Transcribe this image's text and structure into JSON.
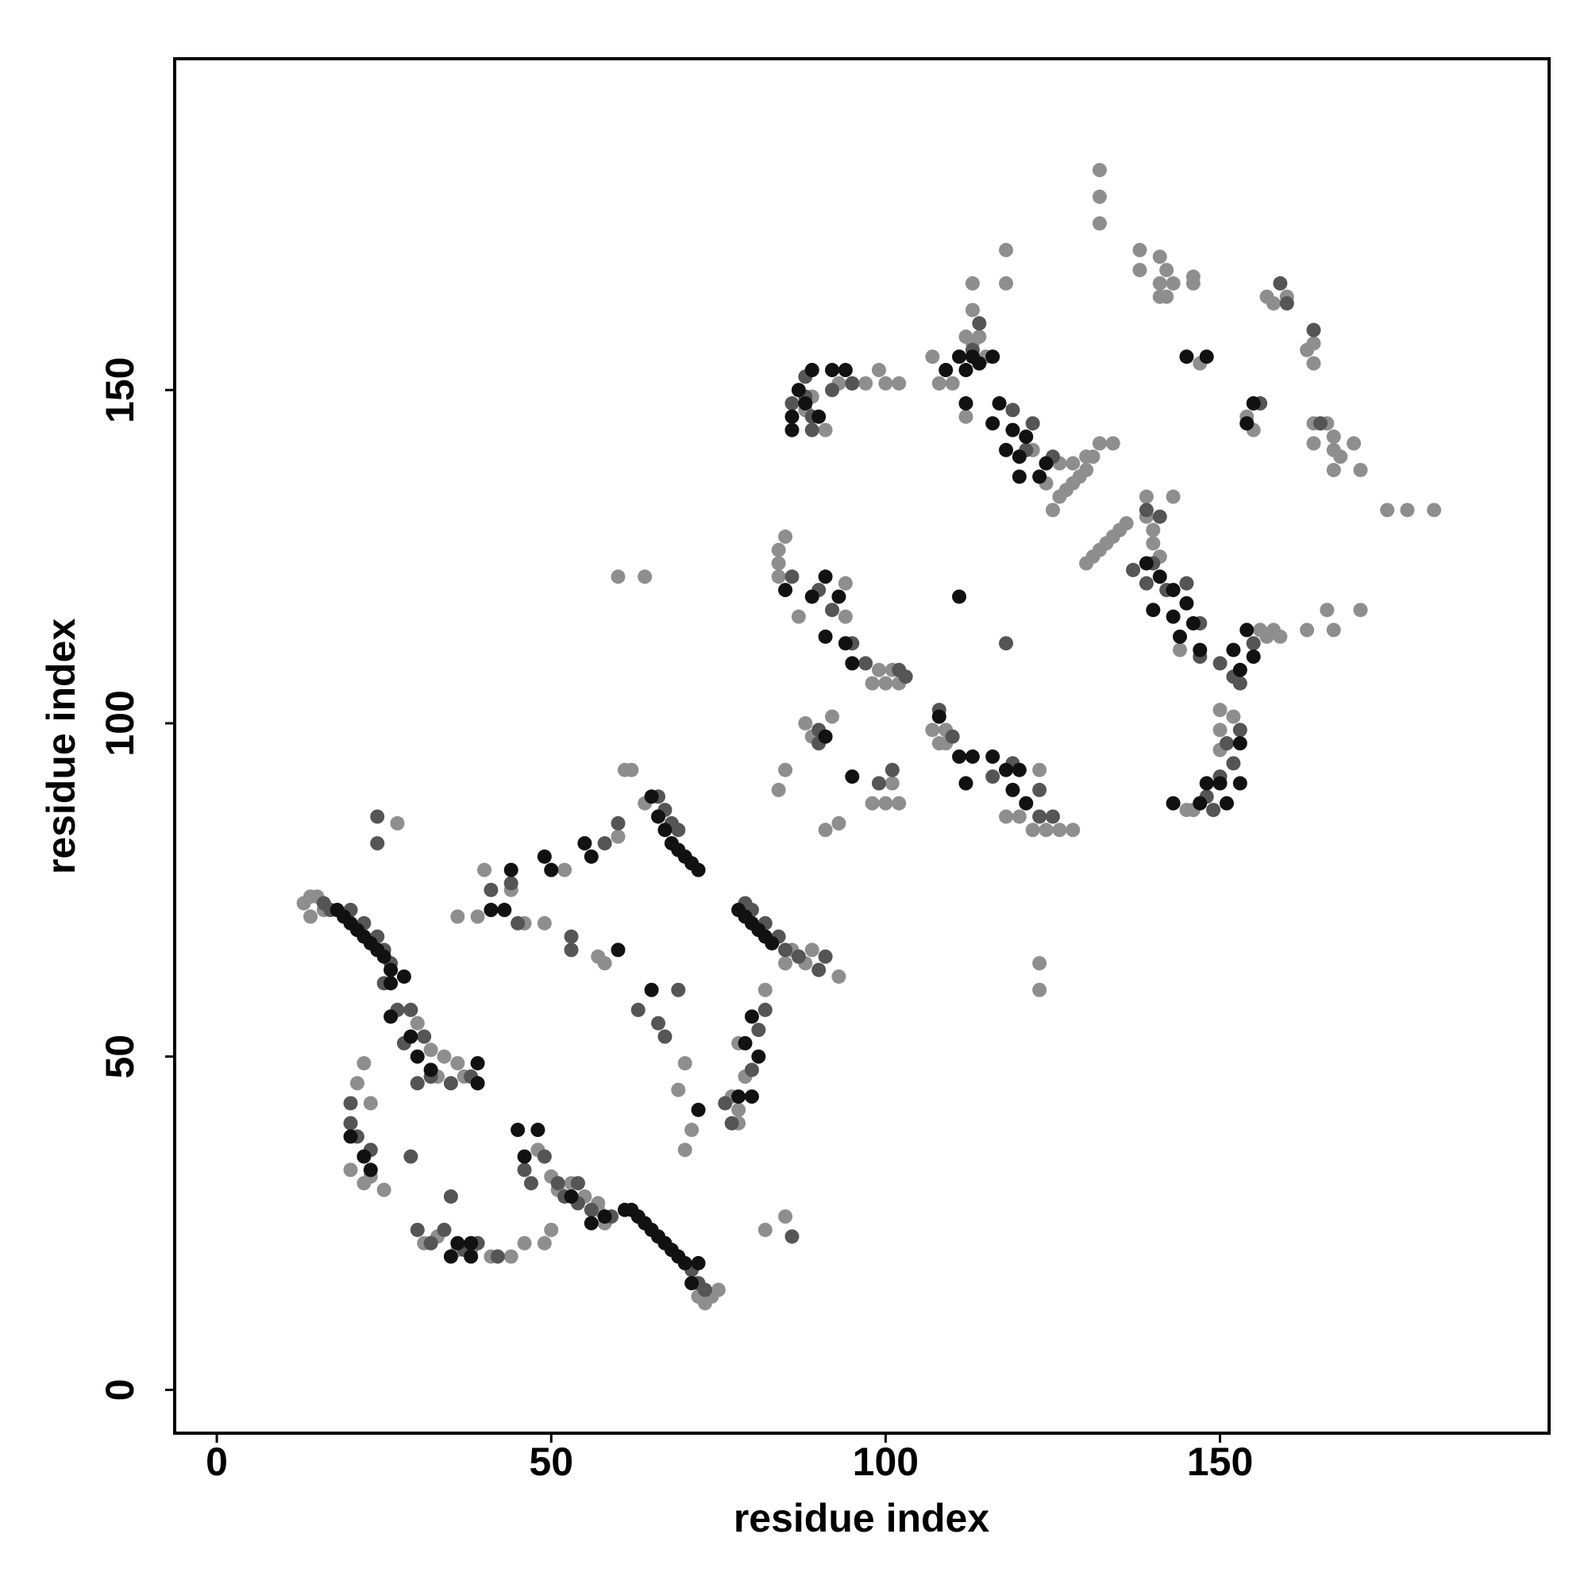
{
  "chart_data": {
    "type": "scatter",
    "x_label": "residue index",
    "y_label": "residue index",
    "xlim": [
      -6.3,
      199.2
    ],
    "ylim": [
      -6.5,
      199.7
    ],
    "xticks": [
      0,
      50,
      100,
      150
    ],
    "yticks": [
      0,
      50,
      100,
      150
    ],
    "series": [
      {
        "color": "#8e8e8e",
        "x": [
          13,
          14,
          15,
          14,
          16,
          22,
          21,
          23,
          20,
          22,
          23,
          25,
          27,
          30,
          32,
          33,
          34,
          36,
          37,
          31,
          33,
          36,
          38,
          41,
          44,
          46,
          49,
          50,
          39,
          36,
          40,
          44,
          46,
          49,
          52,
          48,
          50,
          51,
          53,
          55,
          57,
          58,
          57,
          57,
          58,
          60,
          61,
          62,
          60,
          64,
          64,
          69,
          70,
          70,
          71,
          73,
          74,
          75,
          72,
          77,
          78,
          78,
          78,
          79,
          82,
          85,
          86,
          88,
          89,
          93,
          82,
          85,
          84,
          85,
          84,
          84,
          84,
          85,
          87,
          88,
          89,
          90,
          91,
          93,
          92,
          88,
          89,
          91,
          93,
          95,
          97,
          99,
          100,
          102,
          94,
          94,
          98,
          99,
          100,
          101,
          102,
          98,
          100,
          101,
          102,
          107,
          108,
          110,
          112,
          112,
          113,
          114,
          115,
          113,
          113,
          118,
          118,
          107,
          108,
          109,
          109,
          118,
          120,
          122,
          124,
          126,
          128,
          123,
          123,
          123,
          122,
          124,
          126,
          128,
          130,
          131,
          132,
          134,
          125,
          126,
          127,
          128,
          129,
          130,
          130,
          131,
          132,
          133,
          134,
          135,
          136,
          132,
          132,
          132,
          138,
          138,
          141,
          142,
          141,
          143,
          142,
          141,
          146,
          146,
          139,
          139,
          140,
          140,
          141,
          143,
          144,
          150,
          150,
          150,
          152,
          146,
          145,
          147,
          154,
          155,
          157,
          158,
          160,
          156,
          157,
          158,
          159,
          163,
          164,
          164,
          164,
          166,
          167,
          164,
          167,
          168,
          170,
          171,
          167,
          175,
          178,
          182,
          166,
          171,
          163,
          167
        ],
        "values": [
          73,
          74,
          74,
          71,
          72,
          49,
          46,
          43,
          33,
          31,
          32,
          30,
          85,
          55,
          51,
          47,
          50,
          49,
          47,
          22,
          23,
          21,
          21,
          20,
          20,
          22,
          22,
          24,
          71,
          71,
          78,
          75,
          70,
          70,
          78,
          36,
          32,
          30,
          31,
          29,
          27,
          25,
          28,
          65,
          64,
          83,
          93,
          93,
          122,
          122,
          88,
          45,
          49,
          36,
          39,
          13,
          14,
          15,
          14,
          44,
          42,
          40,
          52,
          47,
          60,
          64,
          66,
          64,
          66,
          62,
          24,
          26,
          90,
          93,
          122,
          124,
          126,
          128,
          116,
          100,
          98,
          98,
          84,
          85,
          101,
          147,
          149,
          144,
          151,
          151,
          151,
          153,
          151,
          151,
          121,
          116,
          106,
          108,
          106,
          108,
          106,
          88,
          88,
          91,
          88,
          155,
          151,
          151,
          146,
          158,
          157,
          158,
          155,
          162,
          166,
          166,
          171,
          99,
          97,
          99,
          97,
          86,
          86,
          84,
          84,
          84,
          84,
          93,
          64,
          60,
          141,
          136,
          139,
          139,
          140,
          140,
          142,
          142,
          132,
          134,
          135,
          136,
          137,
          138,
          124,
          125,
          126,
          127,
          128,
          129,
          130,
          183,
          179,
          175,
          171,
          168,
          170,
          168,
          166,
          166,
          164,
          164,
          167,
          166,
          134,
          131,
          129,
          127,
          125,
          134,
          111,
          102,
          99,
          96,
          101,
          87,
          87,
          154,
          146,
          144,
          164,
          163,
          164,
          114,
          113,
          114,
          113,
          156,
          154,
          157,
          145,
          145,
          143,
          142,
          141,
          140,
          142,
          138,
          138,
          132,
          132,
          132,
          117,
          117,
          114,
          114
        ]
      },
      {
        "color": "#555555",
        "x": [
          16,
          17,
          20,
          22,
          24,
          25,
          26,
          27,
          25,
          29,
          28,
          31,
          32,
          30,
          35,
          38,
          20,
          20,
          21,
          23,
          24,
          24,
          29,
          30,
          32,
          34,
          35,
          37,
          39,
          42,
          41,
          44,
          45,
          46,
          47,
          49,
          51,
          52,
          54,
          54,
          56,
          53,
          53,
          58,
          59,
          60,
          63,
          66,
          67,
          69,
          66,
          67,
          68,
          69,
          72,
          73,
          71,
          76,
          77,
          80,
          81,
          82,
          79,
          80,
          82,
          84,
          85,
          87,
          90,
          91,
          86,
          86,
          88,
          89,
          89,
          92,
          95,
          88,
          86,
          90,
          92,
          95,
          97,
          99,
          101,
          102,
          103,
          90,
          90,
          108,
          110,
          113,
          114,
          119,
          121,
          122,
          125,
          116,
          119,
          123,
          123,
          125,
          137,
          139,
          140,
          141,
          139,
          142,
          145,
          147,
          149,
          148,
          150,
          152,
          151,
          153,
          147,
          150,
          152,
          153,
          155,
          156,
          159,
          164,
          160,
          165,
          118
        ],
        "values": [
          73,
          72,
          72,
          70,
          68,
          66,
          64,
          57,
          61,
          57,
          52,
          53,
          47,
          46,
          46,
          47,
          43,
          40,
          38,
          36,
          86,
          82,
          35,
          24,
          22,
          24,
          29,
          21,
          22,
          20,
          75,
          76,
          70,
          33,
          31,
          35,
          31,
          29,
          31,
          28,
          27,
          66,
          68,
          82,
          26,
          85,
          57,
          55,
          53,
          60,
          89,
          87,
          85,
          84,
          16,
          15,
          18,
          43,
          40,
          48,
          54,
          57,
          73,
          72,
          70,
          68,
          66,
          65,
          63,
          65,
          23,
          148,
          152,
          144,
          146,
          150,
          151,
          149,
          122,
          120,
          117,
          112,
          109,
          91,
          93,
          108,
          107,
          97,
          99,
          102,
          98,
          156,
          160,
          147,
          141,
          145,
          140,
          92,
          94,
          90,
          86,
          86,
          123,
          121,
          124,
          131,
          132,
          120,
          121,
          115,
          87,
          89,
          92,
          94,
          97,
          99,
          110,
          109,
          107,
          106,
          112,
          148,
          166,
          159,
          163,
          145,
          112
        ]
      },
      {
        "color": "#111111",
        "x": [
          18,
          19,
          20,
          21,
          22,
          23,
          24,
          25,
          26,
          26,
          61,
          62,
          63,
          64,
          65,
          66,
          67,
          68,
          69,
          70,
          72,
          71,
          65,
          66,
          67,
          68,
          69,
          70,
          71,
          72,
          78,
          79,
          80,
          81,
          82,
          83,
          80,
          79,
          81,
          80,
          72,
          78,
          49,
          50,
          56,
          55,
          44,
          41,
          43,
          26,
          28,
          29,
          30,
          32,
          39,
          39,
          20,
          22,
          23,
          45,
          48,
          46,
          35,
          38,
          38,
          36,
          53,
          56,
          58,
          60,
          65,
          87,
          89,
          92,
          94,
          86,
          90,
          88,
          86,
          85,
          91,
          89,
          93,
          91,
          94,
          95,
          111,
          113,
          109,
          112,
          114,
          116,
          112,
          117,
          116,
          119,
          121,
          118,
          120,
          124,
          123,
          120,
          111,
          139,
          141,
          143,
          145,
          140,
          143,
          146,
          144,
          147,
          154,
          152,
          155,
          153,
          145,
          148,
          155,
          154,
          108,
          111,
          113,
          112,
          116,
          118,
          120,
          119,
          121,
          91,
          95,
          143,
          147,
          148,
          150,
          153,
          151,
          153
        ],
        "values": [
          72,
          71,
          70,
          69,
          68,
          67,
          66,
          65,
          63,
          61,
          27,
          27,
          26,
          25,
          24,
          23,
          22,
          21,
          20,
          19,
          19,
          16,
          89,
          86,
          84,
          82,
          81,
          80,
          79,
          78,
          72,
          71,
          70,
          69,
          68,
          67,
          56,
          52,
          50,
          44,
          42,
          44,
          80,
          78,
          80,
          82,
          78,
          72,
          72,
          56,
          62,
          53,
          50,
          48,
          49,
          46,
          38,
          35,
          33,
          39,
          39,
          35,
          20,
          20,
          22,
          22,
          29,
          25,
          26,
          66,
          60,
          150,
          153,
          153,
          153,
          146,
          146,
          148,
          144,
          120,
          122,
          119,
          119,
          113,
          112,
          109,
          155,
          155,
          153,
          153,
          154,
          155,
          148,
          148,
          145,
          144,
          143,
          141,
          140,
          139,
          137,
          137,
          119,
          124,
          122,
          120,
          118,
          117,
          116,
          115,
          113,
          111,
          114,
          111,
          110,
          108,
          155,
          155,
          148,
          145,
          101,
          95,
          95,
          91,
          95,
          93,
          93,
          90,
          88,
          98,
          92,
          88,
          88,
          91,
          91,
          91,
          88,
          97
        ]
      }
    ]
  }
}
